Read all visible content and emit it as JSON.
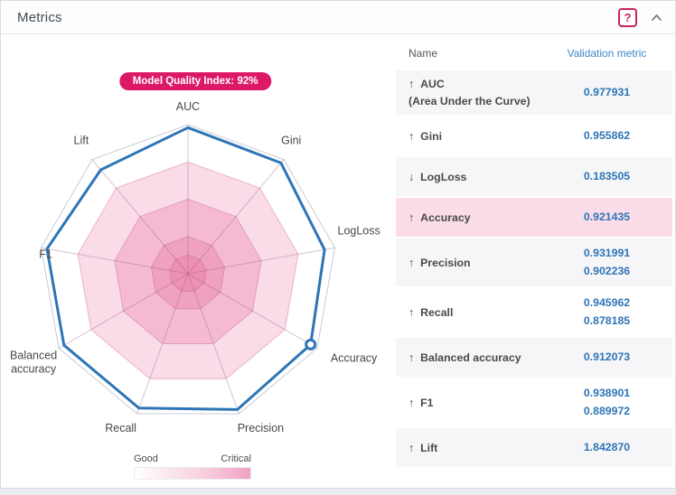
{
  "panel": {
    "title": "Metrics",
    "help_label": "?"
  },
  "chart_data": {
    "type": "radar",
    "title": "Model Quality Index: 92%",
    "axes": [
      "AUC",
      "Gini",
      "LogLoss",
      "Accuracy",
      "Precision",
      "Recall",
      "Balanced accuracy",
      "F1",
      "Lift"
    ],
    "series": [
      {
        "name": "Validation metric",
        "plotted_radius_fraction": [
          0.98,
          0.97,
          0.93,
          0.95,
          0.97,
          0.96,
          0.96,
          0.96,
          0.91
        ],
        "marker_axis": "Accuracy"
      }
    ],
    "rings_radius_fraction": [
      1,
      0.75,
      0.5,
      0.25,
      0.125
    ],
    "ring_fills": [
      "#ffffff",
      "#fadbe8",
      "#f5bad1",
      "#f0a0c0",
      "#ee8fb4"
    ],
    "ring_strokes": [
      "#c6cdd8",
      "#ecb3ca",
      "#e09fbd",
      "#d88fb0",
      "#d585a9"
    ],
    "line_color": "#2e75b6",
    "label_color": "#484848",
    "legend": {
      "left_label": "Good",
      "right_label": "Critical",
      "gradient": [
        "#ffffff",
        "#f0a2c4"
      ]
    }
  },
  "table": {
    "columns": [
      "Name",
      "Validation metric"
    ],
    "rows": [
      {
        "arrow": "↑",
        "name": "AUC",
        "subtitle": "(Area Under the Curve)",
        "values": [
          "0.977931"
        ],
        "shaded": true,
        "highlight": false
      },
      {
        "arrow": "↑",
        "name": "Gini",
        "values": [
          "0.955862"
        ],
        "shaded": false,
        "highlight": false
      },
      {
        "arrow": "↓",
        "name": "LogLoss",
        "values": [
          "0.183505"
        ],
        "shaded": true,
        "highlight": false
      },
      {
        "arrow": "↑",
        "name": "Accuracy",
        "values": [
          "0.921435"
        ],
        "shaded": false,
        "highlight": true
      },
      {
        "arrow": "↑",
        "name": "Precision",
        "values": [
          "0.931991",
          "0.902236"
        ],
        "shaded": true,
        "highlight": false
      },
      {
        "arrow": "↑",
        "name": "Recall",
        "values": [
          "0.945962",
          "0.878185"
        ],
        "shaded": false,
        "highlight": false
      },
      {
        "arrow": "↑",
        "name": "Balanced accuracy",
        "values": [
          "0.912073"
        ],
        "shaded": true,
        "highlight": false
      },
      {
        "arrow": "↑",
        "name": "F1",
        "values": [
          "0.938901",
          "0.889972"
        ],
        "shaded": false,
        "highlight": false
      },
      {
        "arrow": "↑",
        "name": "Lift",
        "values": [
          "1.842870"
        ],
        "shaded": true,
        "highlight": false
      }
    ]
  },
  "colors": {
    "badge_bg": "#dc1967",
    "value_blue": "#2e75b6",
    "highlight_pink": "#fbdde9",
    "shaded_gray": "#f6f6f8"
  }
}
